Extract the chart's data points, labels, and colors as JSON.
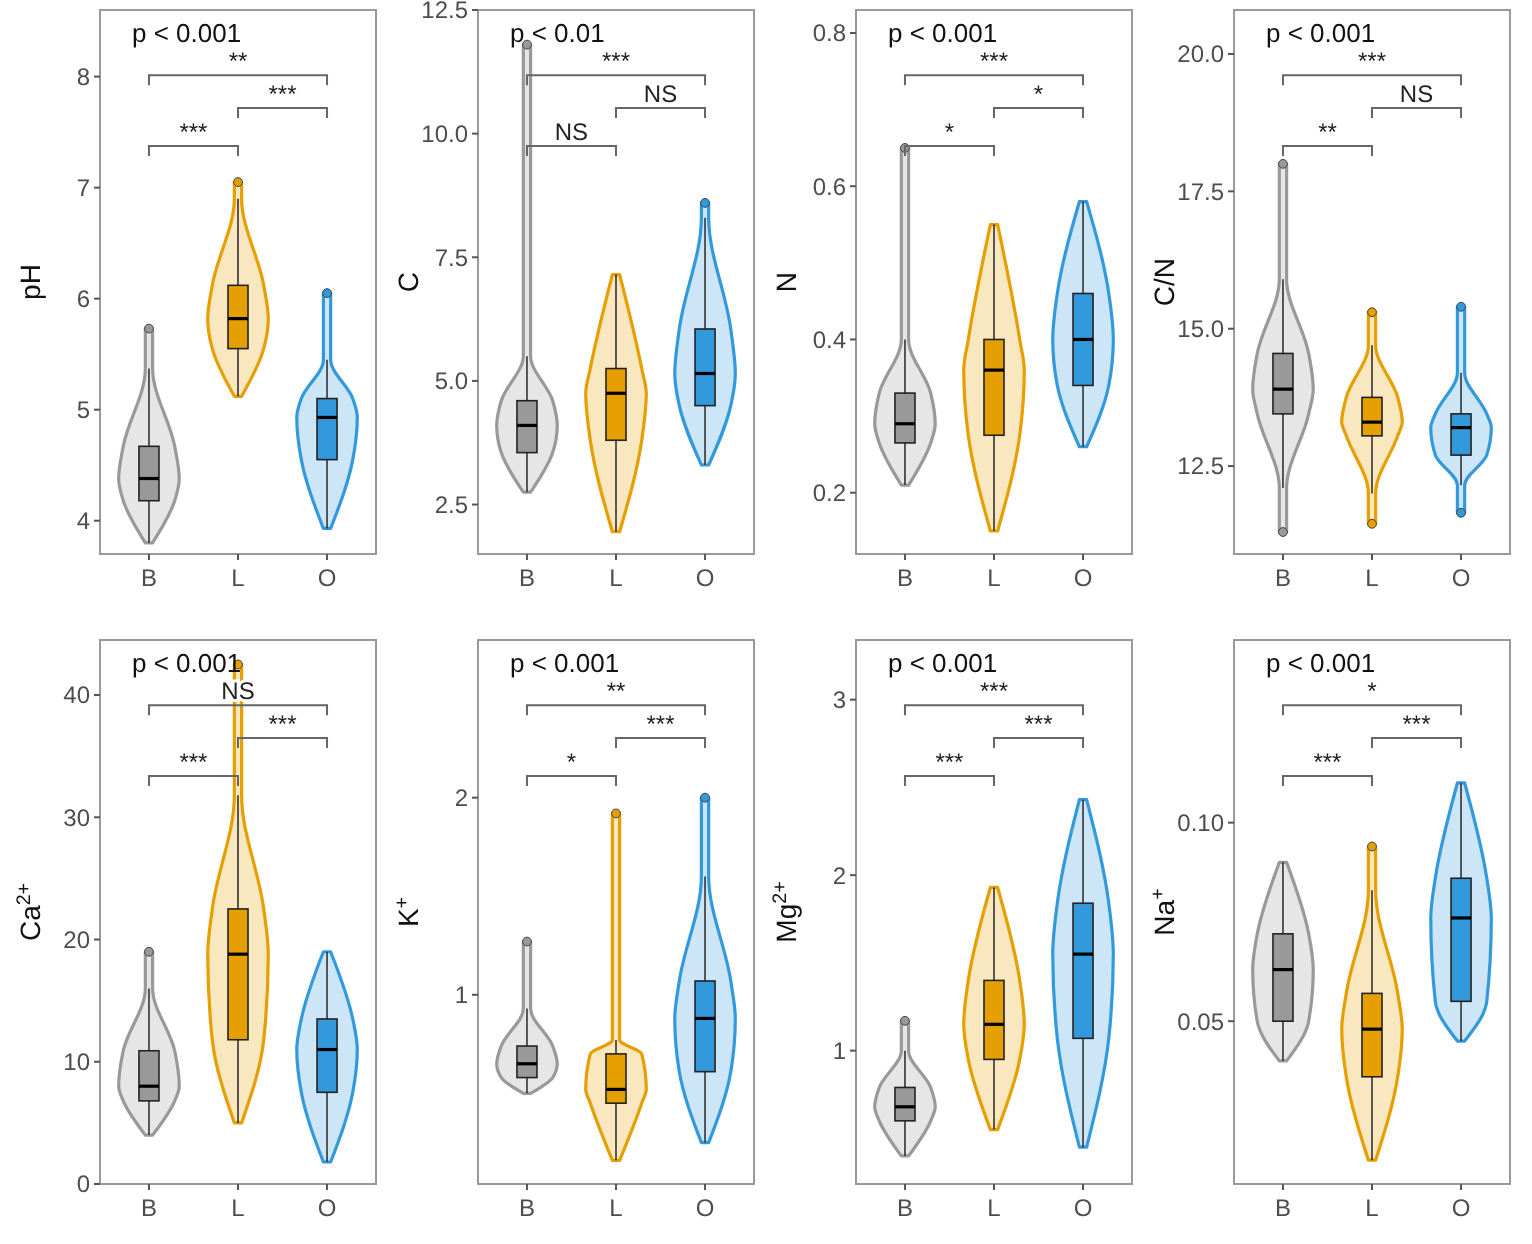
{
  "chart_data": [
    {
      "type": "box",
      "ylabel": "pH",
      "categories": [
        "B",
        "L",
        "O"
      ],
      "colors": [
        "#999999",
        "#e69f00",
        "#3399dd"
      ],
      "ylim": [
        3.7,
        8.6
      ],
      "yticks": [
        4,
        5,
        6,
        7,
        8
      ],
      "annotations": [
        "p < 0.001",
        "***",
        "***",
        "**"
      ],
      "boxes": [
        {
          "low": 3.8,
          "q1": 4.18,
          "median": 4.38,
          "q3": 4.67,
          "high": 5.37,
          "outliers": [
            5.73
          ]
        },
        {
          "low": 5.12,
          "q1": 5.55,
          "median": 5.82,
          "q3": 6.12,
          "high": 6.9,
          "outliers": [
            7.05
          ]
        },
        {
          "low": 3.93,
          "q1": 4.55,
          "median": 4.93,
          "q3": 5.1,
          "high": 5.45,
          "outliers": [
            6.05
          ]
        }
      ]
    },
    {
      "type": "box",
      "ylabel": "C",
      "categories": [
        "B",
        "L",
        "O"
      ],
      "colors": [
        "#999999",
        "#e69f00",
        "#3399dd"
      ],
      "ylim": [
        1.5,
        12.5
      ],
      "yticks": [
        {
          "value": 2.5,
          "label": "2.5"
        },
        {
          "value": 5,
          "label": "5.0"
        },
        {
          "value": 7.5,
          "label": "7.5"
        },
        {
          "value": 10,
          "label": "10.0"
        },
        {
          "value": 12.5,
          "label": "12.5"
        }
      ],
      "annotations": [
        "p < 0.01",
        "NS",
        "NS",
        "***"
      ],
      "boxes": [
        {
          "low": 2.75,
          "q1": 3.55,
          "median": 4.1,
          "q3": 4.6,
          "high": 5.5,
          "outliers": [
            11.8
          ]
        },
        {
          "low": 1.95,
          "q1": 3.8,
          "median": 4.75,
          "q3": 5.25,
          "high": 7.15
        },
        {
          "low": 3.3,
          "q1": 4.5,
          "median": 5.15,
          "q3": 6.05,
          "high": 8.3,
          "outliers": [
            8.6
          ]
        }
      ]
    },
    {
      "type": "box",
      "ylabel": "N",
      "categories": [
        "B",
        "L",
        "O"
      ],
      "colors": [
        "#999999",
        "#e69f00",
        "#3399dd"
      ],
      "ylim": [
        0.12,
        0.83
      ],
      "yticks": [
        0.2,
        0.4,
        0.6,
        0.8
      ],
      "annotations": [
        "p < 0.001",
        "*",
        "*",
        "***"
      ],
      "boxes": [
        {
          "low": 0.21,
          "q1": 0.265,
          "median": 0.29,
          "q3": 0.33,
          "high": 0.4,
          "outliers": [
            0.65
          ]
        },
        {
          "low": 0.15,
          "q1": 0.275,
          "median": 0.36,
          "q3": 0.4,
          "high": 0.55
        },
        {
          "low": 0.26,
          "q1": 0.34,
          "median": 0.4,
          "q3": 0.46,
          "high": 0.58
        }
      ]
    },
    {
      "type": "box",
      "ylabel": "C/N",
      "categories": [
        "B",
        "L",
        "O"
      ],
      "colors": [
        "#999999",
        "#e69f00",
        "#3399dd"
      ],
      "ylim": [
        10.9,
        20.8
      ],
      "yticks": [
        {
          "value": 12.5,
          "label": "12.5"
        },
        {
          "value": 15,
          "label": "15.0"
        },
        {
          "value": 17.5,
          "label": "17.5"
        },
        {
          "value": 20,
          "label": "20.0"
        }
      ],
      "annotations": [
        "p < 0.001",
        "**",
        "NS",
        "***"
      ],
      "boxes": [
        {
          "low": 12.1,
          "q1": 13.45,
          "median": 13.9,
          "q3": 14.55,
          "high": 15.9,
          "outliers": [
            11.3,
            18
          ]
        },
        {
          "low": 12,
          "q1": 13.05,
          "median": 13.3,
          "q3": 13.75,
          "high": 14.7,
          "outliers": [
            11.45,
            15.3
          ]
        },
        {
          "low": 12.15,
          "q1": 12.7,
          "median": 13.2,
          "q3": 13.45,
          "high": 14.2,
          "outliers": [
            11.65,
            15.4
          ]
        }
      ]
    },
    {
      "type": "box",
      "ylabel": "Ca$^{2+}$",
      "categories": [
        "B",
        "L",
        "O"
      ],
      "colors": [
        "#999999",
        "#e69f00",
        "#3399dd"
      ],
      "ylim": [
        0,
        44.5
      ],
      "yticks": [
        0,
        10,
        20,
        30,
        40
      ],
      "annotations": [
        "p < 0.001",
        "***",
        "***",
        "NS"
      ],
      "boxes": [
        {
          "low": 4,
          "q1": 6.8,
          "median": 8,
          "q3": 10.9,
          "high": 16,
          "outliers": [
            19
          ]
        },
        {
          "low": 5,
          "q1": 11.8,
          "median": 18.8,
          "q3": 22.5,
          "high": 31.8,
          "outliers": [
            42.5
          ]
        },
        {
          "low": 1.8,
          "q1": 7.5,
          "median": 11,
          "q3": 13.5,
          "high": 19
        }
      ]
    },
    {
      "type": "box",
      "ylabel": "K$^{+}$",
      "categories": [
        "B",
        "L",
        "O"
      ],
      "colors": [
        "#999999",
        "#e69f00",
        "#3399dd"
      ],
      "ylim": [
        0.04,
        2.8
      ],
      "yticks": [
        1,
        2
      ],
      "annotations": [
        "p < 0.001",
        "*",
        "***",
        "**"
      ],
      "boxes": [
        {
          "low": 0.5,
          "q1": 0.58,
          "median": 0.65,
          "q3": 0.74,
          "high": 0.93,
          "outliers": [
            1.27
          ]
        },
        {
          "low": 0.16,
          "q1": 0.45,
          "median": 0.52,
          "q3": 0.7,
          "high": 0.77,
          "outliers": [
            1.92
          ]
        },
        {
          "low": 0.25,
          "q1": 0.61,
          "median": 0.88,
          "q3": 1.07,
          "high": 1.6,
          "outliers": [
            2
          ]
        }
      ]
    },
    {
      "type": "box",
      "ylabel": "Mg$^{2+}$",
      "categories": [
        "B",
        "L",
        "O"
      ],
      "colors": [
        "#999999",
        "#e69f00",
        "#3399dd"
      ],
      "ylim": [
        0.24,
        3.34
      ],
      "yticks": [
        1,
        2,
        3
      ],
      "annotations": [
        "p < 0.001",
        "***",
        "***",
        "***"
      ],
      "boxes": [
        {
          "low": 0.4,
          "q1": 0.6,
          "median": 0.68,
          "q3": 0.79,
          "high": 1,
          "outliers": [
            1.17
          ]
        },
        {
          "low": 0.55,
          "q1": 0.95,
          "median": 1.15,
          "q3": 1.4,
          "high": 1.93
        },
        {
          "low": 0.45,
          "q1": 1.07,
          "median": 1.55,
          "q3": 1.84,
          "high": 2.43
        }
      ]
    },
    {
      "type": "box",
      "ylabel": "Na$^{+}$",
      "categories": [
        "B",
        "L",
        "O"
      ],
      "colors": [
        "#999999",
        "#e69f00",
        "#3399dd"
      ],
      "ylim": [
        0.009,
        0.146
      ],
      "yticks": [
        {
          "value": 0.05,
          "label": "0.05"
        },
        {
          "value": 0.1,
          "label": "0.10"
        }
      ],
      "annotations": [
        "p < 0.001",
        "***",
        "***",
        "*"
      ],
      "boxes": [
        {
          "low": 0.04,
          "q1": 0.05,
          "median": 0.063,
          "q3": 0.072,
          "high": 0.09
        },
        {
          "low": 0.015,
          "q1": 0.036,
          "median": 0.048,
          "q3": 0.057,
          "high": 0.083,
          "outliers": [
            0.094
          ]
        },
        {
          "low": 0.045,
          "q1": 0.055,
          "median": 0.076,
          "q3": 0.086,
          "high": 0.11
        }
      ]
    }
  ]
}
